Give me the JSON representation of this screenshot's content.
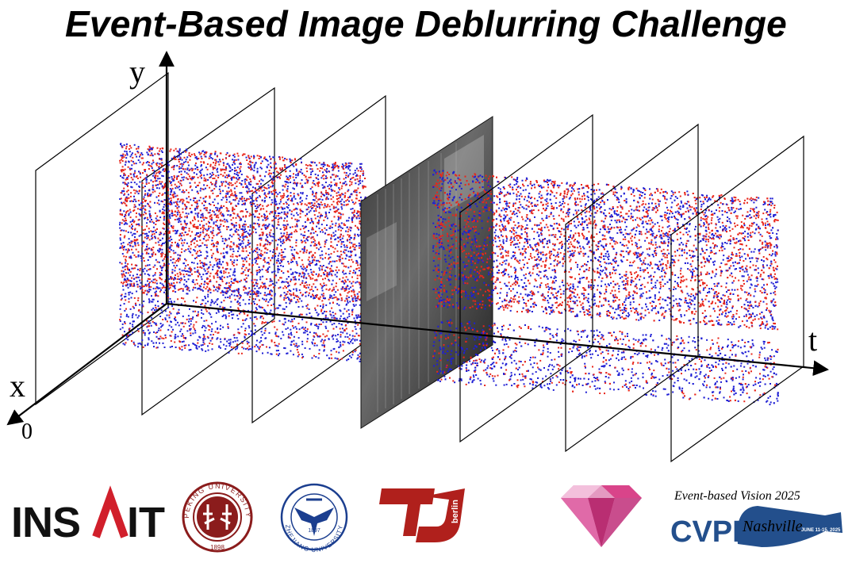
{
  "title": "Event-Based Image Deblurring Challenge",
  "axes": {
    "x_label": "x",
    "y_label": "y",
    "t_label": "t",
    "origin_label": "0"
  },
  "colors": {
    "positive_events": "#e8261b",
    "negative_events": "#1f1fd4",
    "insait_accent": "#d11f2b",
    "pku_red": "#8b1c1c",
    "zju_blue": "#1b3e8f",
    "tu_red": "#b0201c",
    "gem_pink": "#d9448a",
    "cvpr_blue": "#234f8c"
  },
  "logos": {
    "insait": {
      "text": "INSAIT"
    },
    "peking": {
      "ring_text": "PEKING UNIVERSITY",
      "year": "1898"
    },
    "zhejiang": {
      "ring_text": "ZHEJIANG UNIVERSITY",
      "year": "1897"
    },
    "tu_berlin": {
      "text": "berlin"
    },
    "gem": {
      "icon": "gem-icon"
    },
    "cvpr": {
      "event_text": "Event-based Vision 2025",
      "cvpr_text": "CVPR",
      "script_text": "Nashville",
      "dates": "JUNE 11-15, 2025"
    }
  }
}
